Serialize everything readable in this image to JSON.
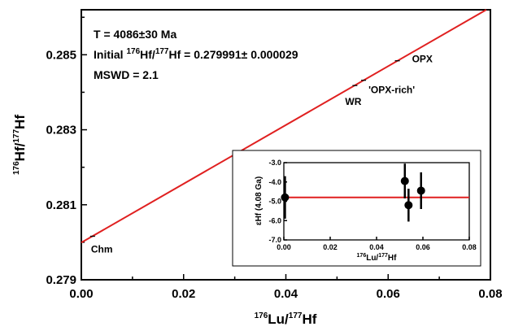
{
  "chart_data": [
    {
      "type": "line",
      "xlabel_prefix": "176",
      "xlabel_mid": "Lu/",
      "xlabel_sup2": "177",
      "xlabel_end": "Hf",
      "ylabel_prefix": "176",
      "ylabel_mid": "Hf/",
      "ylabel_sup2": "177",
      "ylabel_end": "Hf",
      "xlim": [
        0,
        0.08
      ],
      "ylim": [
        0.279,
        0.2862
      ],
      "x_ticks": [
        "0.00",
        "0.02",
        "0.04",
        "0.06",
        "0.08"
      ],
      "y_ticks": [
        "0.279",
        "0.281",
        "0.283",
        "0.285"
      ],
      "isochron": {
        "intercept": 0.279991,
        "slope": 0.0784,
        "color": "#e02020"
      },
      "annotations": {
        "age": "T = 4086±30 Ma",
        "initial_prefix": "Initial ",
        "initial_sup1": "176",
        "initial_mid": "Hf/",
        "initial_sup2": "177",
        "initial_end": "Hf = 0.279991± 0.000029",
        "mswd": "MSWD = 2.1"
      },
      "points": [
        {
          "label": "Chm",
          "x": 0.0022,
          "y": 0.28016
        },
        {
          "label": "WR",
          "x": 0.0535,
          "y": 0.28418
        },
        {
          "label": "'OPX-rich'",
          "x": 0.0552,
          "y": 0.28432
        },
        {
          "label": "OPX",
          "x": 0.0618,
          "y": 0.28484
        }
      ]
    },
    {
      "type": "scatter",
      "xlabel_prefix": "176",
      "xlabel_mid": "Lu/",
      "xlabel_sup2": "177",
      "xlabel_end": "Hf",
      "ylabel": "εHf (4.08 Ga)",
      "xlim": [
        0,
        0.08
      ],
      "ylim": [
        -7.0,
        -3.0
      ],
      "x_ticks": [
        "0.00",
        "0.02",
        "0.04",
        "0.06",
        "0.08"
      ],
      "y_ticks": [
        "-3.0",
        "-4.0",
        "-5.0",
        "-6.0",
        "-7.0"
      ],
      "reference_line": {
        "y": -4.8,
        "color": "#e02020"
      },
      "points": [
        {
          "x": 0.0005,
          "y": -4.8,
          "err": 1.1
        },
        {
          "x": 0.0522,
          "y": -3.95,
          "err": 0.9
        },
        {
          "x": 0.0538,
          "y": -5.2,
          "err": 0.85
        },
        {
          "x": 0.0592,
          "y": -4.45,
          "err": 0.95
        }
      ]
    }
  ]
}
